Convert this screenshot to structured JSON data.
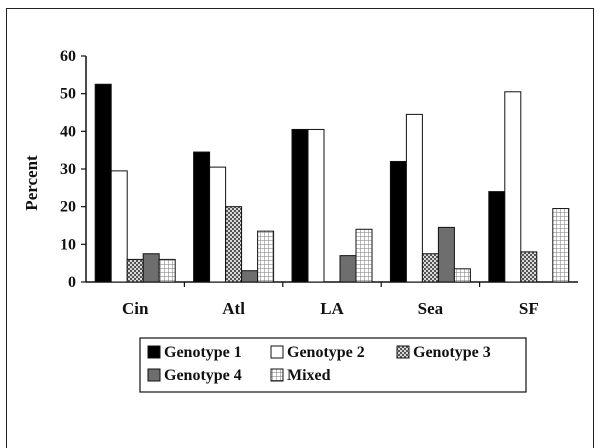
{
  "chart_data": {
    "type": "bar",
    "ylabel": "Percent",
    "ylim": [
      0,
      60
    ],
    "yticks": [
      0,
      10,
      20,
      30,
      40,
      50,
      60
    ],
    "categories": [
      "Cin",
      "Atl",
      "LA",
      "Sea",
      "SF"
    ],
    "series": [
      {
        "name": "Genotype 1",
        "values": [
          52.5,
          34.5,
          40.5,
          32.0,
          24.0
        ],
        "pattern": "solid-black"
      },
      {
        "name": "Genotype 2",
        "values": [
          29.5,
          30.5,
          40.5,
          44.5,
          50.5
        ],
        "pattern": "white"
      },
      {
        "name": "Genotype 3",
        "values": [
          6.0,
          20.0,
          0,
          7.5,
          8.0
        ],
        "pattern": "checker"
      },
      {
        "name": "Genotype 4",
        "values": [
          7.5,
          3.0,
          7.0,
          14.5,
          0
        ],
        "pattern": "dark-gray"
      },
      {
        "name": "Mixed",
        "values": [
          6.0,
          13.5,
          14.0,
          3.5,
          19.5
        ],
        "pattern": "grid"
      }
    ],
    "legend_position": "bottom",
    "grid": false,
    "colors": {
      "axis": "#111111",
      "genotype4": "#6e6e6e"
    }
  }
}
